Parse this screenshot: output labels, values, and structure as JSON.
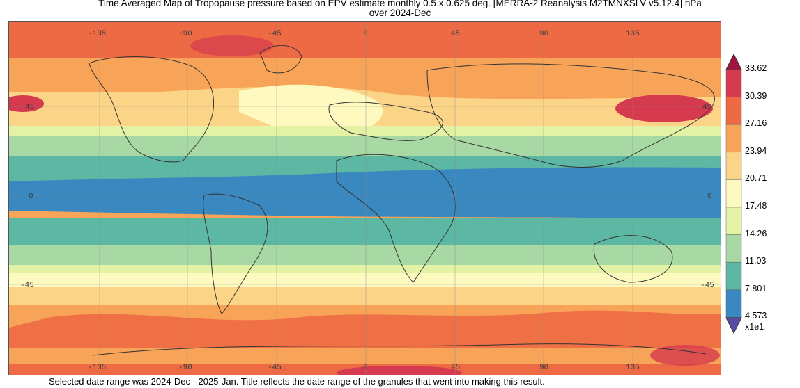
{
  "title": {
    "line1": "Time Averaged Map of Tropopause pressure based on EPV estimate monthly 0.5 x 0.625 deg. [MERRA-2 Reanalysis M2TMNXSLV v5.12.4] hPa",
    "line2": "over 2024-Dec"
  },
  "map": {
    "lon_ticks": [
      "-135",
      "-90",
      "-45",
      "0",
      "45",
      "90",
      "135"
    ],
    "lat_ticks": [
      "45",
      "0",
      "-45"
    ],
    "projection": "equirectangular",
    "gridlines": true
  },
  "colorbar": {
    "labels": [
      "33.62",
      "30.39",
      "27.16",
      "23.94",
      "20.71",
      "17.48",
      "14.26",
      "11.03",
      "7.801",
      "4.573"
    ],
    "multiplier": "x1e1",
    "colors": [
      "#d63a4e",
      "#ee6a44",
      "#f8a458",
      "#fcd488",
      "#fdf9bf",
      "#e3f2a4",
      "#a8d8a3",
      "#5cb8a3",
      "#3a88c0"
    ],
    "over_color": "#a31240",
    "under_color": "#5b4aa3"
  },
  "footnote": "- Selected date range was 2024-Dec - 2025-Jan. Title reflects the date range of the granules that went into making this result."
}
